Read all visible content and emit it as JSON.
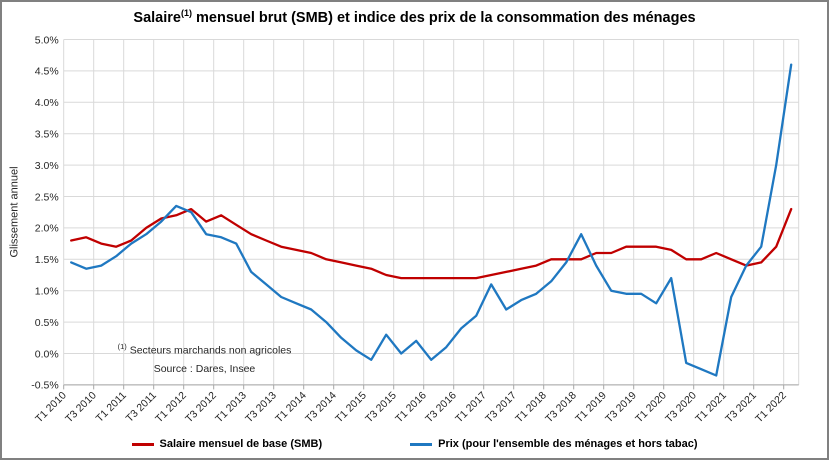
{
  "window": {
    "background": "#FFFFFF",
    "border_color": "#808080"
  },
  "chart_data": {
    "type": "line",
    "title": {
      "prefix": "Salaire",
      "superscript": "(1)",
      "rest": " mensuel brut (SMB) et indice des prix de la consommation des ménages"
    },
    "ylabel": "Glissement annuel",
    "ylim": [
      -0.5,
      5.0
    ],
    "grid": true,
    "legend_position": "bottom",
    "yticks": [
      "5.0%",
      "4.5%",
      "4.0%",
      "3.5%",
      "3.0%",
      "2.5%",
      "2.0%",
      "1.5%",
      "1.0%",
      "0.5%",
      "0.0%",
      "-0.5%"
    ],
    "xticks": [
      "T1 2010",
      "T3 2010",
      "T1 2011",
      "T3 2011",
      "T1 2012",
      "T3 2012",
      "T1 2013",
      "T3 2013",
      "T1 2014",
      "T3 2014",
      "T1 2015",
      "T3 2015",
      "T1 2016",
      "T3 2016",
      "T1 2017",
      "T3 2017",
      "T1 2018",
      "T3 2018",
      "T1 2019",
      "T3 2019",
      "T1 2020",
      "T3 2020",
      "T1 2021",
      "T3 2021",
      "T1 2022"
    ],
    "x_categories": [
      "T1 2010",
      "T2 2010",
      "T3 2010",
      "T4 2010",
      "T1 2011",
      "T2 2011",
      "T3 2011",
      "T4 2011",
      "T1 2012",
      "T2 2012",
      "T3 2012",
      "T4 2012",
      "T1 2013",
      "T2 2013",
      "T3 2013",
      "T4 2013",
      "T1 2014",
      "T2 2014",
      "T3 2014",
      "T4 2014",
      "T1 2015",
      "T2 2015",
      "T3 2015",
      "T4 2015",
      "T1 2016",
      "T2 2016",
      "T3 2016",
      "T4 2016",
      "T1 2017",
      "T2 2017",
      "T3 2017",
      "T4 2017",
      "T1 2018",
      "T2 2018",
      "T3 2018",
      "T4 2018",
      "T1 2019",
      "T2 2019",
      "T3 2019",
      "T4 2019",
      "T1 2020",
      "T2 2020",
      "T3 2020",
      "T4 2020",
      "T1 2021",
      "T2 2021",
      "T3 2021",
      "T4 2021",
      "T1 2022"
    ],
    "series": [
      {
        "name": "Salaire mensuel de base (SMB)",
        "color": "#C00000",
        "values": [
          1.8,
          1.85,
          1.75,
          1.7,
          1.8,
          2.0,
          2.15,
          2.2,
          2.3,
          2.1,
          2.2,
          2.05,
          1.9,
          1.8,
          1.7,
          1.65,
          1.6,
          1.5,
          1.45,
          1.4,
          1.35,
          1.25,
          1.2,
          1.2,
          1.2,
          1.2,
          1.2,
          1.2,
          1.25,
          1.3,
          1.35,
          1.4,
          1.5,
          1.5,
          1.5,
          1.6,
          1.6,
          1.7,
          1.7,
          1.7,
          1.65,
          1.5,
          1.5,
          1.6,
          1.5,
          1.4,
          1.45,
          1.7,
          2.3
        ]
      },
      {
        "name": "Prix (pour l'ensemble des ménages et hors tabac)",
        "color": "#1F78C1",
        "values": [
          1.45,
          1.35,
          1.4,
          1.55,
          1.75,
          1.9,
          2.1,
          2.35,
          2.25,
          1.9,
          1.85,
          1.75,
          1.3,
          1.1,
          0.9,
          0.8,
          0.7,
          0.5,
          0.25,
          0.05,
          -0.1,
          0.3,
          0.0,
          0.2,
          -0.1,
          0.1,
          0.4,
          0.6,
          1.1,
          0.7,
          0.85,
          0.95,
          1.15,
          1.45,
          1.9,
          1.4,
          1.0,
          0.95,
          0.95,
          0.8,
          1.2,
          -0.15,
          -0.25,
          -0.35,
          0.9,
          1.4,
          1.7,
          3.0,
          4.6
        ]
      }
    ],
    "footnote": {
      "sup": "(1)",
      "line1": " Secteurs marchands non agricoles",
      "line2": "Source : Dares, Insee"
    },
    "colors": {
      "gridline": "#D9D9D9",
      "axis": "#A6A6A6",
      "tick_text": "#262626"
    }
  }
}
